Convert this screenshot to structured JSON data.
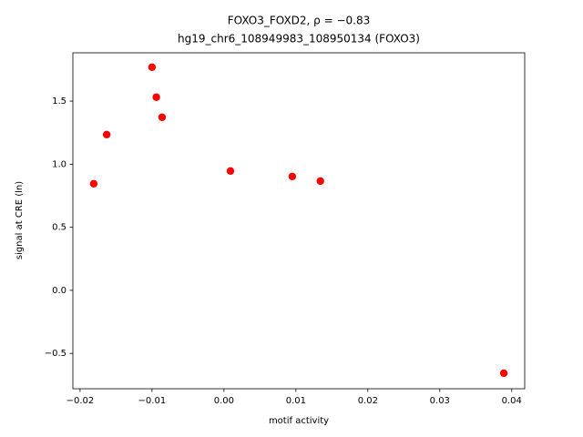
{
  "chart_data": {
    "type": "scatter",
    "title": "FOXO3_FOXD2, ρ = −0.83",
    "subtitle": "hg19_chr6_108949983_108950134 (FOXO3)",
    "x_label": "motif activity",
    "y_label": "signal at CRE (ln)",
    "color": "#ff0000",
    "x": [
      -0.0181,
      -0.0163,
      -0.01,
      -0.0094,
      -0.0086,
      0.0009,
      0.0095,
      0.0134,
      0.0389
    ],
    "values": [
      0.845,
      1.235,
      1.769,
      1.531,
      1.372,
      0.946,
      0.903,
      0.866,
      -0.657
    ],
    "xlim": [
      -0.021,
      0.0418
    ],
    "ylim": [
      -0.78,
      1.883
    ],
    "xticks": [
      {
        "value": -0.02,
        "label": "−0.02"
      },
      {
        "value": -0.01,
        "label": "−0.01"
      },
      {
        "value": 0,
        "label": "0.00"
      },
      0.01,
      0.02,
      0.03,
      0.04
    ],
    "yticks": [
      {
        "value": -0.5,
        "label": "−0.5"
      },
      {
        "value": 0,
        "label": "0.0"
      },
      0.5,
      {
        "value": 1,
        "label": "1.0"
      },
      1.5
    ],
    "grid": false
  }
}
